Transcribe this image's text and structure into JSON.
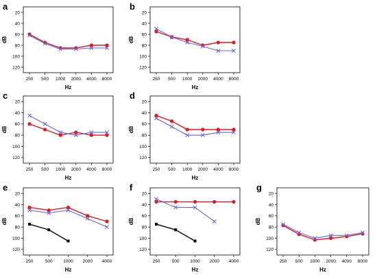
{
  "chart_data": [
    {
      "panel": "a",
      "type": "line",
      "categories": [
        "250",
        "500",
        "1000",
        "2000",
        "4000",
        "8000"
      ],
      "xlabel": "Hz",
      "ylabel": "dB",
      "ylim": [
        10,
        130
      ],
      "y_inverted": true,
      "yticks": [
        "20",
        "40",
        "60",
        "80",
        "100",
        "120"
      ],
      "series": [
        {
          "color": "#e8151b",
          "marker": "circle",
          "values": [
            60,
            75,
            85,
            85,
            80,
            80
          ]
        },
        {
          "color": "#6464e6",
          "marker": "x",
          "values": [
            62,
            77,
            87,
            87,
            85,
            85
          ]
        }
      ]
    },
    {
      "panel": "b",
      "type": "line",
      "categories": [
        "250",
        "500",
        "1000",
        "2000",
        "4000",
        "8000"
      ],
      "xlabel": "Hz",
      "ylabel": "dB",
      "ylim": [
        10,
        130
      ],
      "y_inverted": true,
      "yticks": [
        "20",
        "40",
        "60",
        "80",
        "100",
        "120"
      ],
      "series": [
        {
          "color": "#e8151b",
          "marker": "circle",
          "values": [
            55,
            65,
            70,
            80,
            75,
            75
          ]
        },
        {
          "color": "#6464e6",
          "marker": "x",
          "values": [
            50,
            65,
            75,
            82,
            90,
            90
          ]
        }
      ]
    },
    {
      "panel": "c",
      "type": "line",
      "categories": [
        "250",
        "500",
        "1000",
        "2000",
        "4000",
        "8000"
      ],
      "xlabel": "Hz",
      "ylabel": "dB",
      "ylim": [
        10,
        130
      ],
      "y_inverted": true,
      "yticks": [
        "20",
        "40",
        "60",
        "80",
        "100",
        "120"
      ],
      "series": [
        {
          "color": "#e8151b",
          "marker": "circle",
          "values": [
            60,
            70,
            80,
            75,
            80,
            80
          ]
        },
        {
          "color": "#6464e6",
          "marker": "x",
          "values": [
            45,
            60,
            75,
            80,
            75,
            75
          ]
        }
      ]
    },
    {
      "panel": "d",
      "type": "line",
      "categories": [
        "250",
        "500",
        "1000",
        "2000",
        "4000",
        "8000"
      ],
      "xlabel": "Hz",
      "ylabel": "dB",
      "ylim": [
        10,
        130
      ],
      "y_inverted": true,
      "yticks": [
        "20",
        "40",
        "60",
        "80",
        "100",
        "120"
      ],
      "series": [
        {
          "color": "#e8151b",
          "marker": "circle",
          "values": [
            45,
            55,
            70,
            70,
            70,
            70
          ]
        },
        {
          "color": "#6464e6",
          "marker": "x",
          "values": [
            50,
            65,
            80,
            80,
            75,
            75
          ]
        }
      ]
    },
    {
      "panel": "e",
      "type": "line",
      "categories": [
        "250",
        "500",
        "1000",
        "2000",
        "4000"
      ],
      "xlabel": "Hz",
      "ylabel": "dB",
      "ylim": [
        10,
        130
      ],
      "y_inverted": true,
      "yticks": [
        "20",
        "40",
        "60",
        "80",
        "100",
        "120"
      ],
      "series": [
        {
          "color": "#e8151b",
          "marker": "circle",
          "values": [
            45,
            50,
            45,
            60,
            70
          ]
        },
        {
          "color": "#6464e6",
          "marker": "x",
          "values": [
            50,
            55,
            50,
            65,
            80
          ]
        },
        {
          "color": "#000000",
          "marker": "square",
          "values": [
            75,
            85,
            105,
            null,
            null
          ]
        }
      ]
    },
    {
      "panel": "f",
      "type": "line",
      "categories": [
        "250",
        "500",
        "1000",
        "2000",
        "4000"
      ],
      "xlabel": "Hz",
      "ylabel": "dB",
      "ylim": [
        10,
        130
      ],
      "y_inverted": true,
      "yticks": [
        "20",
        "40",
        "60",
        "80",
        "100",
        "120"
      ],
      "series": [
        {
          "color": "#e8151b",
          "marker": "circle",
          "values": [
            35,
            35,
            35,
            35,
            35
          ]
        },
        {
          "color": "#6464e6",
          "marker": "x",
          "values": [
            30,
            45,
            45,
            70,
            null
          ]
        },
        {
          "color": "#000000",
          "marker": "square",
          "values": [
            75,
            85,
            105,
            null,
            null
          ]
        }
      ]
    },
    {
      "panel": "g",
      "type": "line",
      "categories": [
        "250",
        "500",
        "1000",
        "2000",
        "4000",
        "8000"
      ],
      "xlabel": "Hz",
      "ylabel": "dB",
      "ylim": [
        10,
        130
      ],
      "y_inverted": true,
      "yticks": [
        "20",
        "40",
        "60",
        "80",
        "100",
        "120"
      ],
      "series": [
        {
          "color": "#e8151b",
          "marker": "circle",
          "values": [
            77,
            93,
            103,
            100,
            97,
            92
          ]
        },
        {
          "color": "#6464e6",
          "marker": "x",
          "values": [
            75,
            90,
            100,
            95,
            95,
            90
          ]
        }
      ]
    }
  ]
}
